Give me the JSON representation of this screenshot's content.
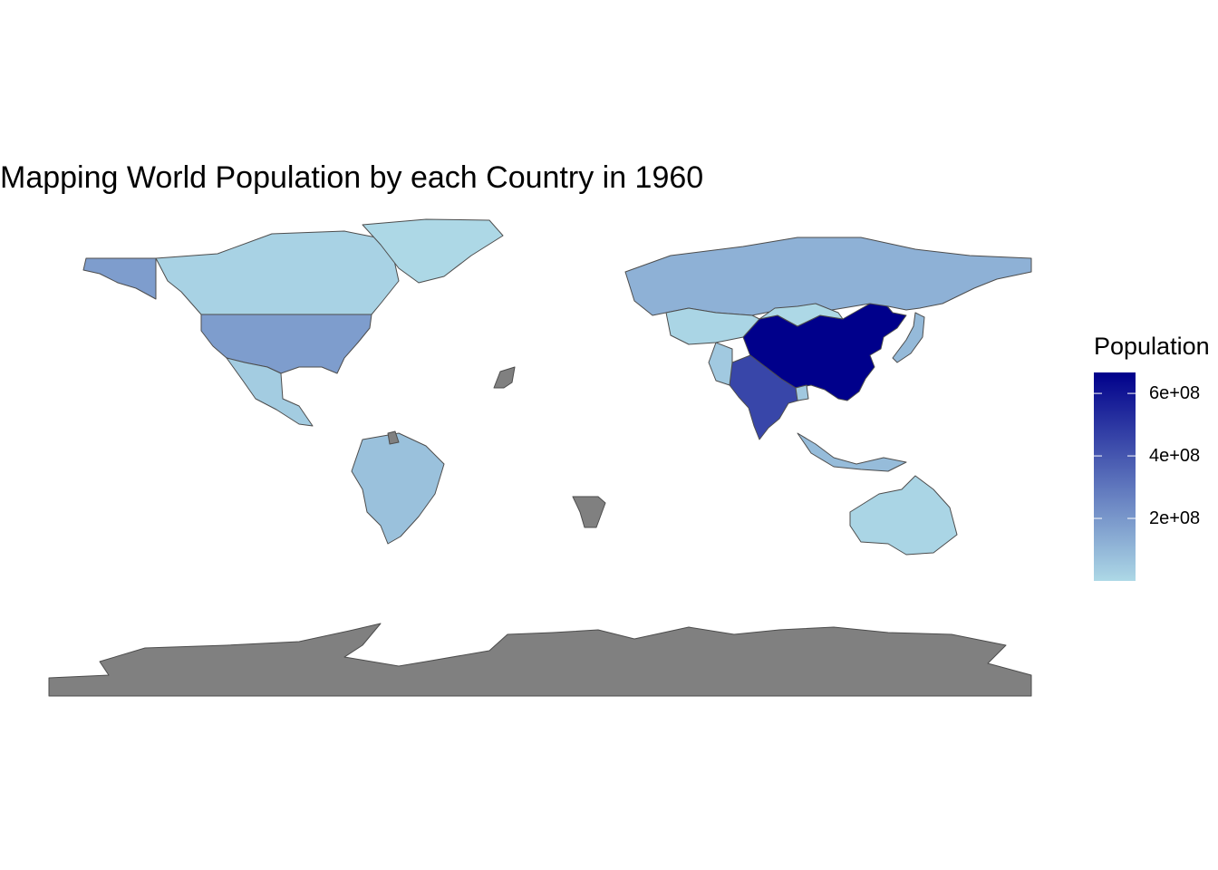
{
  "title": "Mapping World Population by each Country in 1960",
  "legend": {
    "title": "Population",
    "breaks": [
      {
        "value": 600000000,
        "label": "6e+08"
      },
      {
        "value": 400000000,
        "label": "4e+08"
      },
      {
        "value": 200000000,
        "label": "2e+08"
      }
    ],
    "min_value": 0,
    "max_value": 667000000,
    "low_color": "#add8e6",
    "high_color": "#00008b",
    "na_color": "#808080"
  },
  "map": {
    "type": "choropleth",
    "variable": "Population",
    "year": 1960,
    "border_color": "#4d4d4d",
    "countries": [
      {
        "name": "China",
        "value": 667000000
      },
      {
        "name": "India",
        "value": 450000000
      },
      {
        "name": "United States",
        "value": 181000000
      },
      {
        "name": "Russia",
        "value": 120000000
      },
      {
        "name": "Brazil",
        "value": 72000000
      },
      {
        "name": "Japan",
        "value": 93000000
      },
      {
        "name": "Indonesia",
        "value": 88000000
      },
      {
        "name": "Pakistan",
        "value": 45000000
      },
      {
        "name": "Bangladesh",
        "value": 48000000
      },
      {
        "name": "Canada",
        "value": 18000000
      },
      {
        "name": "Mexico",
        "value": 37000000
      },
      {
        "name": "Australia",
        "value": 10000000
      },
      {
        "name": "Kazakhstan",
        "value": 9700000
      },
      {
        "name": "Mongolia",
        "value": 1000000
      },
      {
        "name": "Greenland",
        "value": 32000
      },
      {
        "name": "Alaska (US)",
        "value": 181000000
      },
      {
        "name": "Western Sahara",
        "value": null
      },
      {
        "name": "Namibia",
        "value": null
      },
      {
        "name": "French Guiana",
        "value": null
      },
      {
        "name": "Antarctica",
        "value": null
      }
    ]
  }
}
